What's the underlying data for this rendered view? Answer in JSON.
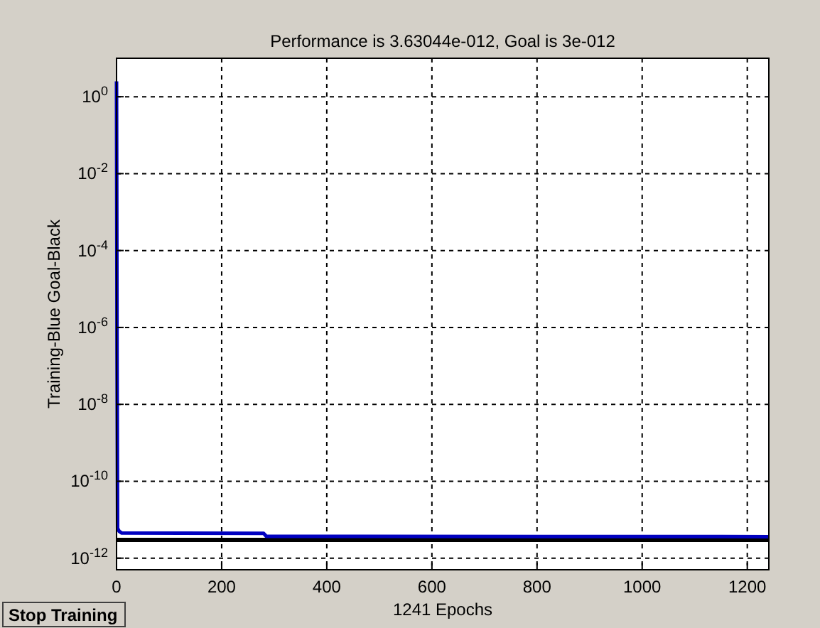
{
  "chart_data": {
    "type": "line",
    "title": "Performance is 3.63044e-012, Goal is 3e-012",
    "xlabel": "1241 Epochs",
    "ylabel": "Training-Blue  Goal-Black",
    "x": [
      0,
      1,
      2,
      5,
      10,
      280,
      285,
      1241
    ],
    "series": [
      {
        "color": "#0000c0",
        "values": [
          2.5,
          2e-07,
          6e-12,
          5e-12,
          4.5e-12,
          4.4e-12,
          3.7e-12,
          3.63e-12
        ]
      }
    ],
    "ref_lines": [
      {
        "axis": "y",
        "value": 3e-12,
        "color": "#000000"
      }
    ],
    "log": true,
    "grid": true,
    "line_style": "solid",
    "marker": "none",
    "xlim": [
      0,
      1241
    ],
    "xticks": [
      0,
      200,
      400,
      600,
      800,
      1000,
      1200
    ],
    "ylim": [
      5e-13,
      10
    ],
    "yticks": [
      {
        "value": 1,
        "label": "10$^{0}$"
      },
      {
        "value": 0.01,
        "label": "10$^{-2}$"
      },
      {
        "value": 0.0001,
        "label": "10$^{-4}$"
      },
      {
        "value": 1e-06,
        "label": "10$^{-6}$"
      },
      {
        "value": 1e-08,
        "label": "10$^{-8}$"
      },
      {
        "value": 1e-10,
        "label": "10$^{-10}$"
      },
      {
        "value": 1e-12,
        "label": "10$^{-12}$"
      }
    ],
    "annotations": [
      "Stop Training"
    ]
  }
}
